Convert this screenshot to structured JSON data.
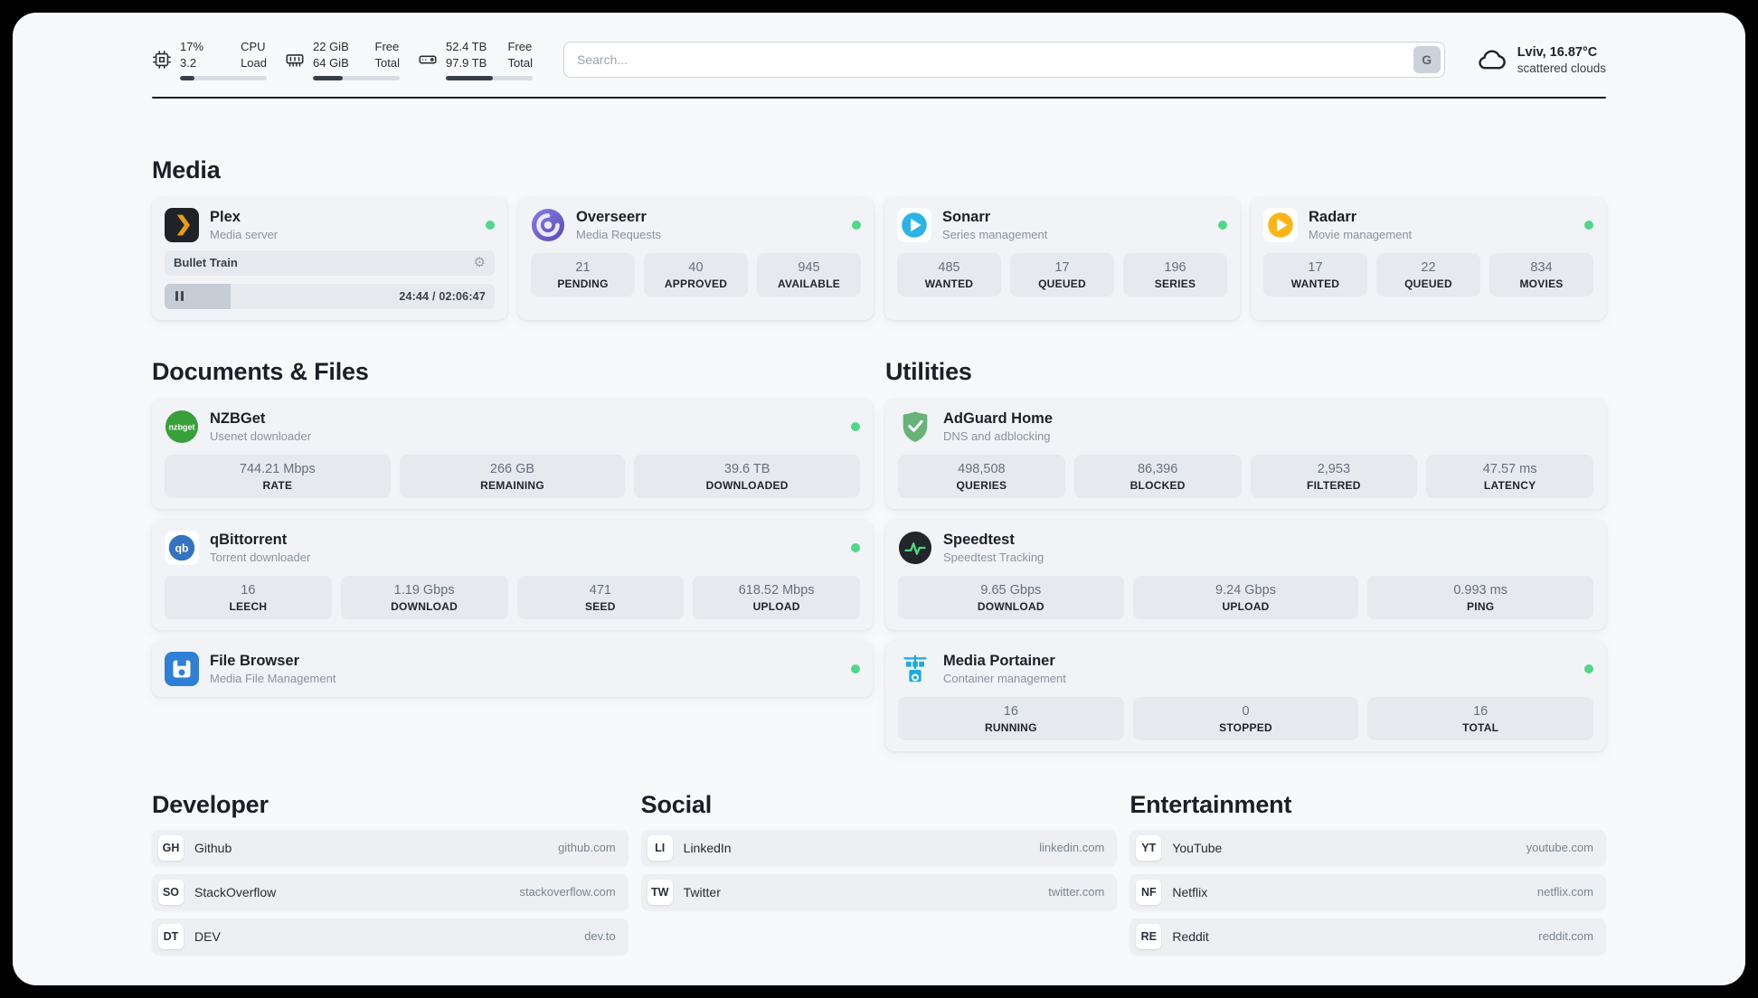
{
  "header": {
    "cpu": {
      "usage": "17%",
      "load": "3.2",
      "label_top": "CPU",
      "label_bottom": "Load",
      "progress_percent": 17
    },
    "memory": {
      "free": "22 GiB",
      "total": "64 GiB",
      "label_top": "Free",
      "label_bottom": "Total",
      "progress_percent": 34
    },
    "storage": {
      "free": "52.4 TB",
      "total": "97.9 TB",
      "label_top": "Free",
      "label_bottom": "Total",
      "progress_percent": 54
    },
    "search": {
      "placeholder": "Search...",
      "engine_label": "G"
    },
    "weather": {
      "location": "Lviv, 16.87°C",
      "condition": "scattered clouds"
    }
  },
  "media": {
    "title": "Media",
    "plex": {
      "title": "Plex",
      "subtitle": "Media server",
      "now_playing": "Bullet Train",
      "time": "24:44 / 02:06:47",
      "progress_percent": 20
    },
    "overseerr": {
      "title": "Overseerr",
      "subtitle": "Media Requests",
      "stats": [
        {
          "value": "21",
          "label": "PENDING"
        },
        {
          "value": "40",
          "label": "APPROVED"
        },
        {
          "value": "945",
          "label": "AVAILABLE"
        }
      ]
    },
    "sonarr": {
      "title": "Sonarr",
      "subtitle": "Series management",
      "stats": [
        {
          "value": "485",
          "label": "WANTED"
        },
        {
          "value": "17",
          "label": "QUEUED"
        },
        {
          "value": "196",
          "label": "SERIES"
        }
      ]
    },
    "radarr": {
      "title": "Radarr",
      "subtitle": "Movie management",
      "stats": [
        {
          "value": "17",
          "label": "WANTED"
        },
        {
          "value": "22",
          "label": "QUEUED"
        },
        {
          "value": "834",
          "label": "MOVIES"
        }
      ]
    }
  },
  "documents": {
    "title": "Documents & Files",
    "nzbget": {
      "title": "NZBGet",
      "subtitle": "Usenet downloader",
      "stats": [
        {
          "value": "744.21 Mbps",
          "label": "RATE"
        },
        {
          "value": "266 GB",
          "label": "REMAINING"
        },
        {
          "value": "39.6 TB",
          "label": "DOWNLOADED"
        }
      ]
    },
    "qbittorrent": {
      "title": "qBittorrent",
      "subtitle": "Torrent downloader",
      "stats": [
        {
          "value": "16",
          "label": "LEECH"
        },
        {
          "value": "1.19 Gbps",
          "label": "DOWNLOAD"
        },
        {
          "value": "471",
          "label": "SEED"
        },
        {
          "value": "618.52 Mbps",
          "label": "UPLOAD"
        }
      ]
    },
    "filebrowser": {
      "title": "File Browser",
      "subtitle": "Media File Management"
    }
  },
  "utilities": {
    "title": "Utilities",
    "adguard": {
      "title": "AdGuard Home",
      "subtitle": "DNS and adblocking",
      "stats": [
        {
          "value": "498,508",
          "label": "QUERIES"
        },
        {
          "value": "86,396",
          "label": "BLOCKED"
        },
        {
          "value": "2,953",
          "label": "FILTERED"
        },
        {
          "value": "47.57 ms",
          "label": "LATENCY"
        }
      ]
    },
    "speedtest": {
      "title": "Speedtest",
      "subtitle": "Speedtest Tracking",
      "stats": [
        {
          "value": "9.65 Gbps",
          "label": "DOWNLOAD"
        },
        {
          "value": "9.24 Gbps",
          "label": "UPLOAD"
        },
        {
          "value": "0.993 ms",
          "label": "PING"
        }
      ]
    },
    "portainer": {
      "title": "Media Portainer",
      "subtitle": "Container management",
      "stats": [
        {
          "value": "16",
          "label": "RUNNING"
        },
        {
          "value": "0",
          "label": "STOPPED"
        },
        {
          "value": "16",
          "label": "TOTAL"
        }
      ]
    }
  },
  "bookmarks": {
    "developer": {
      "title": "Developer",
      "links": [
        {
          "abbr": "GH",
          "name": "Github",
          "url": "github.com"
        },
        {
          "abbr": "SO",
          "name": "StackOverflow",
          "url": "stackoverflow.com"
        },
        {
          "abbr": "DT",
          "name": "DEV",
          "url": "dev.to"
        }
      ]
    },
    "social": {
      "title": "Social",
      "links": [
        {
          "abbr": "LI",
          "name": "LinkedIn",
          "url": "linkedin.com"
        },
        {
          "abbr": "TW",
          "name": "Twitter",
          "url": "twitter.com"
        }
      ]
    },
    "entertainment": {
      "title": "Entertainment",
      "links": [
        {
          "abbr": "YT",
          "name": "YouTube",
          "url": "youtube.com"
        },
        {
          "abbr": "NF",
          "name": "Netflix",
          "url": "netflix.com"
        },
        {
          "abbr": "RE",
          "name": "Reddit",
          "url": "reddit.com"
        }
      ]
    }
  },
  "icons": {
    "gear": "⚙",
    "nzbget_logo_text": "nzbget",
    "qbittorrent_logo_text": "qb"
  },
  "colors": {
    "status_online": "#4fd88a",
    "plex_accent": "#e5a00d",
    "overseerr_purple": "#6a5fcf",
    "sonarr_blue": "#2bb3e8",
    "radarr_amber": "#fdb515",
    "nzbget_green": "#37a039",
    "qbittorrent_blue": "#3573c0",
    "filebrowser_blue": "#2f7fd6",
    "adguard_green": "#67b379",
    "speedtest_green": "#4ade80",
    "portainer_blue": "#1fa9e4"
  }
}
